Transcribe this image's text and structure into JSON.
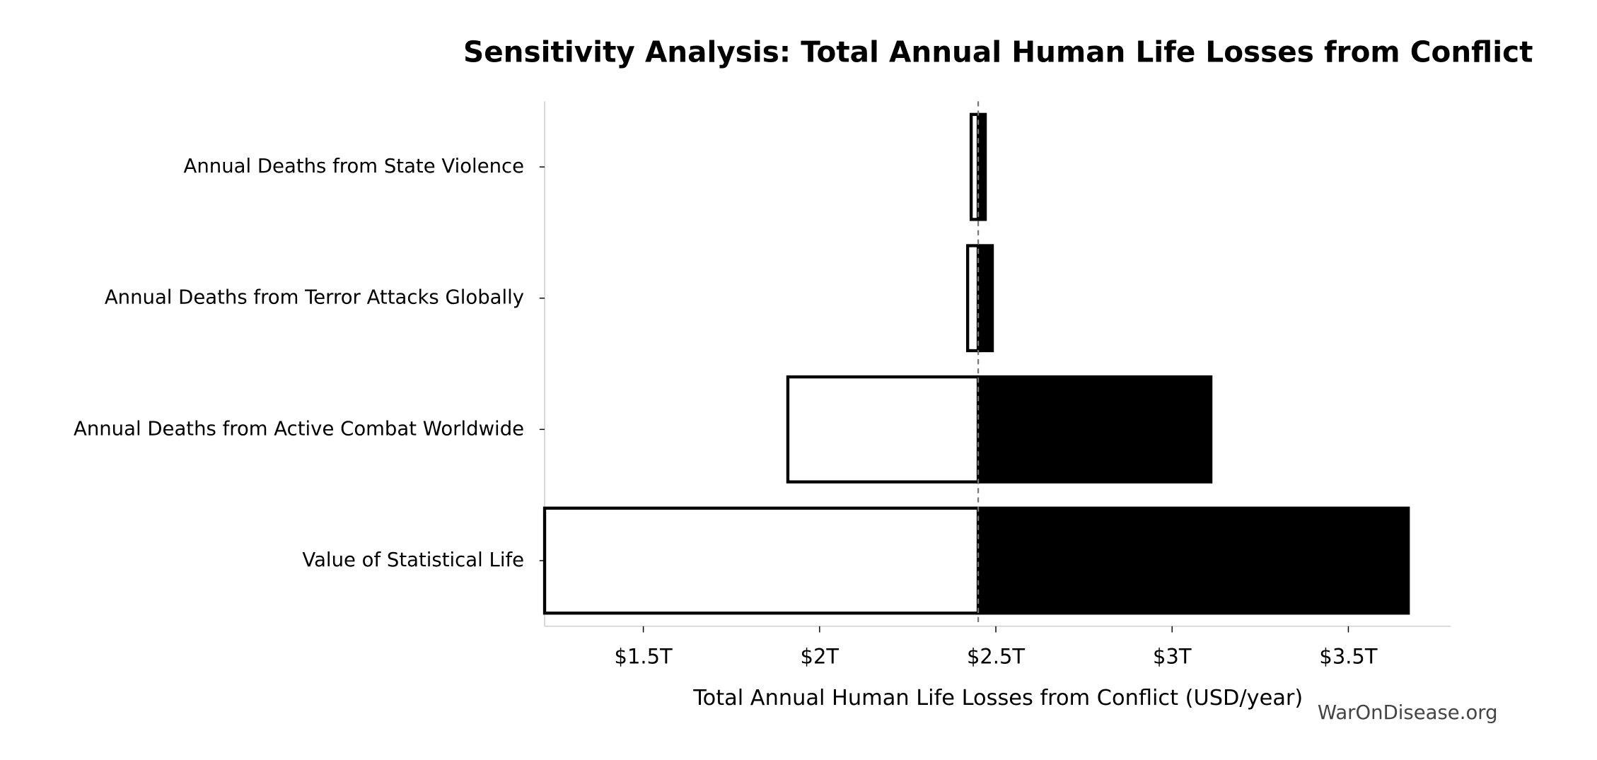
{
  "chart_data": {
    "type": "tornado",
    "title": "Sensitivity Analysis: Total Annual Human Life Losses from Conflict",
    "x_label": "Total Annual Human Life Losses from Conflict (USD/year)",
    "watermark": "WarOnDisease.org",
    "categories": [
      "Annual Deaths from State Violence",
      "Annual Deaths from Terror Attacks Globally",
      "Annual Deaths from Active Combat Worldwide",
      "Value of Statistical Life"
    ],
    "baseline": 2.45,
    "low": [
      2.43,
      2.42,
      1.91,
      1.22
    ],
    "high": [
      2.47,
      2.49,
      3.11,
      3.67
    ],
    "low_color": "#ffffff",
    "high_color": "#000000",
    "xlim": [
      1.22,
      3.79
    ],
    "xticks": [
      {
        "value": 1.5,
        "label": "$1.5T"
      },
      {
        "value": 2,
        "label": "$2T"
      },
      {
        "value": 2.5,
        "label": "$2.5T"
      },
      {
        "value": 3,
        "label": "$3T"
      },
      {
        "value": 3.5,
        "label": "$3.5T"
      }
    ]
  }
}
